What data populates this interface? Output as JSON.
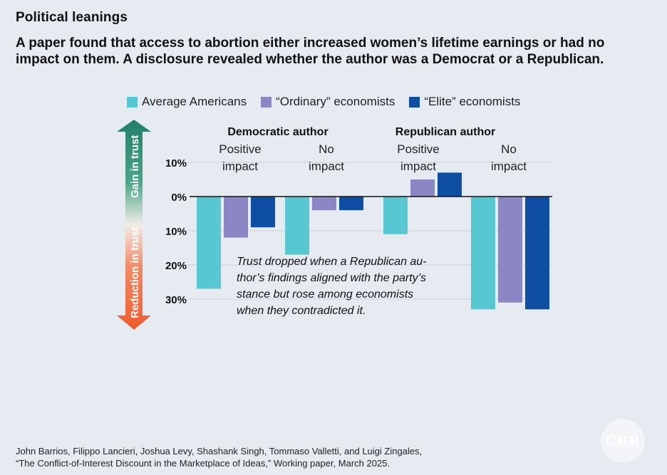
{
  "kicker": "Political leanings",
  "title": "A paper found that access to abortion either increased women’s lifetime earnings or had no impact on them. A disclosure revealed whether the author was a Democrat or a Republican.",
  "legend": [
    {
      "label": "Average Americans",
      "color": "#57c8d1"
    },
    {
      "label": "“Ordinary” economists",
      "color": "#8a87c4"
    },
    {
      "label": "“Elite” economists",
      "color": "#0f4fa3"
    }
  ],
  "arrow": {
    "up_label": "Gain in trust",
    "down_label": "Reduction in trust",
    "up_color": "#217f6a",
    "down_color": "#ef5b2c"
  },
  "annotation": {
    "lines": [
      "Trust dropped when a Republican au-",
      "thor’s findings aligned with the party’s",
      "stance but rose among economists",
      "when they contradicted it."
    ]
  },
  "source": {
    "line1": "John Barrios, Filippo Lancieri, Joshua Levy, Shashank Singh, Tommaso Valletti, and Luigi Zingales,",
    "line2": "“The Conflict-of-Interest Discount in the Marketplace of Ideas,” Working paper, March 2025."
  },
  "logo": "CBR",
  "chart_data": {
    "type": "bar",
    "groups": [
      {
        "name": "Democratic author",
        "subgroups": [
          "Positive impact",
          "No impact"
        ]
      },
      {
        "name": "Republican author",
        "subgroups": [
          "Positive impact",
          "No impact"
        ]
      }
    ],
    "categories": [
      [
        "Positive",
        "impact"
      ],
      [
        "No",
        "impact"
      ],
      [
        "Positive",
        "impact"
      ],
      [
        "No",
        "impact"
      ]
    ],
    "series": [
      {
        "name": "Average Americans",
        "color": "#57c8d1",
        "values": [
          -27,
          -17,
          -11,
          -33
        ]
      },
      {
        "name": "“Ordinary” economists",
        "color": "#8a87c4",
        "values": [
          -12,
          -4,
          5,
          -31
        ]
      },
      {
        "name": "“Elite” economists",
        "color": "#0f4fa3",
        "values": [
          -9,
          -4,
          7,
          -33
        ]
      }
    ],
    "yticks": [
      {
        "value": 10,
        "label": "10%"
      },
      {
        "value": 0,
        "label": "0%"
      },
      {
        "value": -10,
        "label": "10%"
      },
      {
        "value": -20,
        "label": "20%"
      },
      {
        "value": -30,
        "label": "30%"
      }
    ],
    "ylim": [
      -33,
      11
    ],
    "grid": true,
    "legend_position": "top"
  }
}
